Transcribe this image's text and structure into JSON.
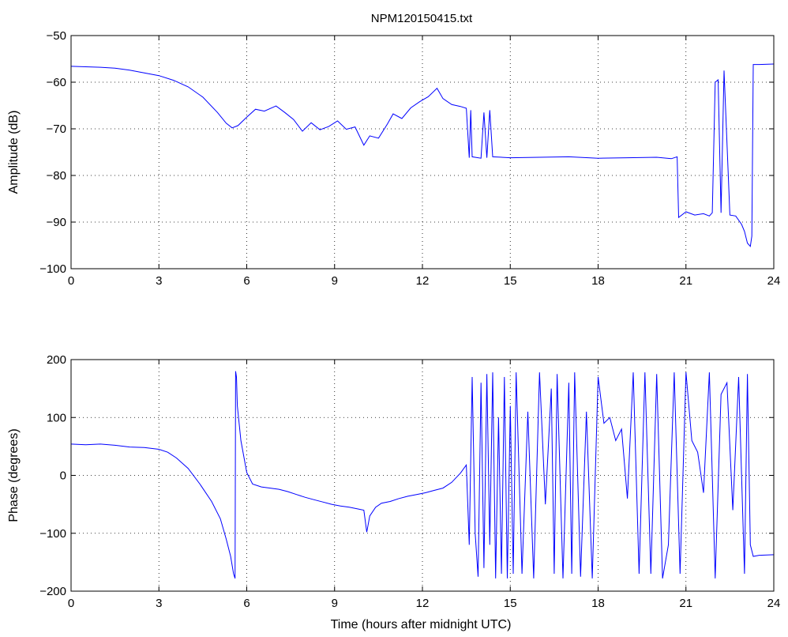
{
  "figure": {
    "title": "NPM120150415.txt"
  },
  "chart_data": [
    {
      "type": "line",
      "title": "NPM120150415.txt",
      "xlabel": "",
      "ylabel": "Amplitude (dB)",
      "xlim": [
        0,
        24
      ],
      "ylim": [
        -100,
        -50
      ],
      "xticks": [
        0,
        3,
        6,
        9,
        12,
        15,
        18,
        21,
        24
      ],
      "yticks": [
        -100,
        -90,
        -80,
        -70,
        -60,
        -50
      ],
      "xtick_labels": [
        "0",
        "3",
        "6",
        "9",
        "12",
        "15",
        "18",
        "21",
        "24"
      ],
      "ytick_labels": [
        "−100",
        "−90",
        "−80",
        "−70",
        "−60",
        "−50"
      ],
      "grid": true,
      "color": "#0000ff",
      "series": [
        {
          "x": [
            0,
            0.5,
            1,
            1.5,
            2,
            2.5,
            3,
            3.5,
            4,
            4.5,
            5,
            5.3,
            5.5,
            5.7,
            6,
            6.3,
            6.6,
            7,
            7.3,
            7.6,
            7.9,
            8.2,
            8.5,
            8.8,
            9.1,
            9.4,
            9.7,
            10,
            10.2,
            10.5,
            10.8,
            11,
            11.3,
            11.6,
            11.9,
            12.2,
            12.5,
            12.7,
            13,
            13.3,
            13.5,
            13.6,
            13.65,
            13.7,
            14.0,
            14.1,
            14.2,
            14.3,
            14.4,
            15,
            16,
            17,
            18,
            19,
            20,
            20.5,
            20.7,
            20.75,
            21,
            21.3,
            21.6,
            21.8,
            21.9,
            22.0,
            22.1,
            22.2,
            22.3,
            22.5,
            22.7,
            22.9,
            23.0,
            23.1,
            23.2,
            23.25,
            23.3,
            23.5,
            24
          ],
          "y": [
            -56.6,
            -56.7,
            -56.8,
            -57.0,
            -57.4,
            -58.0,
            -58.6,
            -59.6,
            -61.0,
            -63.2,
            -66.5,
            -68.8,
            -69.8,
            -69.3,
            -67.5,
            -65.8,
            -66.2,
            -65.1,
            -66.5,
            -68.0,
            -70.5,
            -68.7,
            -70.2,
            -69.5,
            -68.3,
            -70.1,
            -69.6,
            -73.5,
            -71.5,
            -72.0,
            -69.0,
            -66.8,
            -67.8,
            -65.5,
            -64.2,
            -63.1,
            -61.3,
            -63.5,
            -64.8,
            -65.2,
            -65.6,
            -76.2,
            -66.0,
            -76.0,
            -76.3,
            -66.5,
            -76.2,
            -66.0,
            -76.0,
            -76.2,
            -76.1,
            -76.0,
            -76.3,
            -76.2,
            -76.1,
            -76.4,
            -76.0,
            -89.0,
            -87.8,
            -88.5,
            -88.2,
            -88.7,
            -88.0,
            -60.0,
            -59.5,
            -88.0,
            -57.5,
            -88.5,
            -88.7,
            -90.5,
            -92.0,
            -94.5,
            -95.2,
            -93.0,
            -56.2,
            -56.2,
            -56.1
          ]
        }
      ]
    },
    {
      "type": "line",
      "title": "",
      "xlabel": "Time (hours after midnight UTC)",
      "ylabel": "Phase (degrees)",
      "xlim": [
        0,
        24
      ],
      "ylim": [
        -200,
        200
      ],
      "xticks": [
        0,
        3,
        6,
        9,
        12,
        15,
        18,
        21,
        24
      ],
      "yticks": [
        -200,
        -100,
        0,
        100,
        200
      ],
      "xtick_labels": [
        "0",
        "3",
        "6",
        "9",
        "12",
        "15",
        "18",
        "21",
        "24"
      ],
      "ytick_labels": [
        "−200",
        "−100",
        "0",
        "100",
        "200"
      ],
      "grid": true,
      "color": "#0000ff",
      "series": [
        {
          "x": [
            0,
            0.5,
            1,
            1.5,
            2,
            2.5,
            3,
            3.3,
            3.6,
            4,
            4.4,
            4.8,
            5.1,
            5.3,
            5.45,
            5.55,
            5.6,
            5.62,
            5.65,
            5.68,
            5.8,
            6.0,
            6.2,
            6.5,
            6.8,
            7.1,
            7.4,
            7.7,
            8,
            8.3,
            8.6,
            8.9,
            9.2,
            9.5,
            9.8,
            10.0,
            10.1,
            10.2,
            10.4,
            10.6,
            10.9,
            11.2,
            11.5,
            11.8,
            12.1,
            12.4,
            12.7,
            13.0,
            13.3,
            13.5,
            13.6,
            13.7,
            13.8,
            13.9,
            14.0,
            14.1,
            14.2,
            14.3,
            14.4,
            14.5,
            14.6,
            14.7,
            14.8,
            14.9,
            15.0,
            15.1,
            15.2,
            15.4,
            15.6,
            15.8,
            16.0,
            16.2,
            16.4,
            16.5,
            16.6,
            16.8,
            17.0,
            17.1,
            17.2,
            17.4,
            17.6,
            17.8,
            18.0,
            18.2,
            18.4,
            18.6,
            18.8,
            19.0,
            19.2,
            19.4,
            19.6,
            19.8,
            20.0,
            20.2,
            20.4,
            20.6,
            20.8,
            21.0,
            21.2,
            21.4,
            21.6,
            21.8,
            22.0,
            22.2,
            22.4,
            22.6,
            22.8,
            23.0,
            23.1,
            23.2,
            23.3,
            23.5,
            24
          ],
          "y": [
            54,
            53,
            54,
            52,
            49,
            48,
            45,
            40,
            30,
            12,
            -15,
            -45,
            -75,
            -110,
            -140,
            -170,
            -178,
            180,
            170,
            120,
            60,
            5,
            -15,
            -20,
            -22,
            -24,
            -28,
            -33,
            -38,
            -42,
            -46,
            -50,
            -53,
            -55,
            -58,
            -60,
            -98,
            -70,
            -55,
            -48,
            -45,
            -40,
            -36,
            -33,
            -30,
            -26,
            -22,
            -12,
            4,
            18,
            -120,
            170,
            -100,
            -175,
            160,
            -160,
            175,
            -120,
            178,
            -178,
            100,
            -170,
            170,
            -178,
            120,
            -170,
            178,
            -170,
            110,
            -178,
            178,
            -50,
            150,
            -170,
            175,
            -178,
            160,
            -170,
            178,
            -175,
            110,
            -178,
            170,
            90,
            100,
            60,
            80,
            -40,
            178,
            -170,
            178,
            -170,
            175,
            -178,
            -120,
            178,
            -170,
            178,
            60,
            40,
            -30,
            178,
            -178,
            140,
            160,
            -60,
            170,
            -170,
            175,
            -120,
            -140,
            -138,
            -137
          ]
        }
      ]
    }
  ]
}
